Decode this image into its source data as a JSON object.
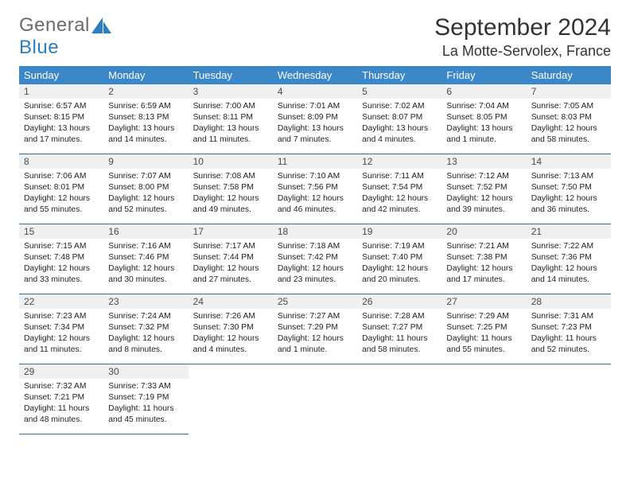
{
  "brand": {
    "part1": "General",
    "part2": "Blue"
  },
  "title": "September 2024",
  "location": "La Motte-Servolex, France",
  "colors": {
    "header_bg": "#3b87c8",
    "header_text": "#ffffff",
    "date_bar_bg": "#eef0f2",
    "row_border": "#3b6fa0",
    "body_text": "#222222",
    "logo_gray": "#6b6b6b",
    "logo_blue": "#2a7fbf"
  },
  "typography": {
    "title_size_pt": 22,
    "location_size_pt": 14,
    "dow_size_pt": 10,
    "body_size_pt": 8
  },
  "daysOfWeek": [
    "Sunday",
    "Monday",
    "Tuesday",
    "Wednesday",
    "Thursday",
    "Friday",
    "Saturday"
  ],
  "weeks": [
    [
      {
        "date": "1",
        "sunrise": "Sunrise: 6:57 AM",
        "sunset": "Sunset: 8:15 PM",
        "daylight": "Daylight: 13 hours and 17 minutes."
      },
      {
        "date": "2",
        "sunrise": "Sunrise: 6:59 AM",
        "sunset": "Sunset: 8:13 PM",
        "daylight": "Daylight: 13 hours and 14 minutes."
      },
      {
        "date": "3",
        "sunrise": "Sunrise: 7:00 AM",
        "sunset": "Sunset: 8:11 PM",
        "daylight": "Daylight: 13 hours and 11 minutes."
      },
      {
        "date": "4",
        "sunrise": "Sunrise: 7:01 AM",
        "sunset": "Sunset: 8:09 PM",
        "daylight": "Daylight: 13 hours and 7 minutes."
      },
      {
        "date": "5",
        "sunrise": "Sunrise: 7:02 AM",
        "sunset": "Sunset: 8:07 PM",
        "daylight": "Daylight: 13 hours and 4 minutes."
      },
      {
        "date": "6",
        "sunrise": "Sunrise: 7:04 AM",
        "sunset": "Sunset: 8:05 PM",
        "daylight": "Daylight: 13 hours and 1 minute."
      },
      {
        "date": "7",
        "sunrise": "Sunrise: 7:05 AM",
        "sunset": "Sunset: 8:03 PM",
        "daylight": "Daylight: 12 hours and 58 minutes."
      }
    ],
    [
      {
        "date": "8",
        "sunrise": "Sunrise: 7:06 AM",
        "sunset": "Sunset: 8:01 PM",
        "daylight": "Daylight: 12 hours and 55 minutes."
      },
      {
        "date": "9",
        "sunrise": "Sunrise: 7:07 AM",
        "sunset": "Sunset: 8:00 PM",
        "daylight": "Daylight: 12 hours and 52 minutes."
      },
      {
        "date": "10",
        "sunrise": "Sunrise: 7:08 AM",
        "sunset": "Sunset: 7:58 PM",
        "daylight": "Daylight: 12 hours and 49 minutes."
      },
      {
        "date": "11",
        "sunrise": "Sunrise: 7:10 AM",
        "sunset": "Sunset: 7:56 PM",
        "daylight": "Daylight: 12 hours and 46 minutes."
      },
      {
        "date": "12",
        "sunrise": "Sunrise: 7:11 AM",
        "sunset": "Sunset: 7:54 PM",
        "daylight": "Daylight: 12 hours and 42 minutes."
      },
      {
        "date": "13",
        "sunrise": "Sunrise: 7:12 AM",
        "sunset": "Sunset: 7:52 PM",
        "daylight": "Daylight: 12 hours and 39 minutes."
      },
      {
        "date": "14",
        "sunrise": "Sunrise: 7:13 AM",
        "sunset": "Sunset: 7:50 PM",
        "daylight": "Daylight: 12 hours and 36 minutes."
      }
    ],
    [
      {
        "date": "15",
        "sunrise": "Sunrise: 7:15 AM",
        "sunset": "Sunset: 7:48 PM",
        "daylight": "Daylight: 12 hours and 33 minutes."
      },
      {
        "date": "16",
        "sunrise": "Sunrise: 7:16 AM",
        "sunset": "Sunset: 7:46 PM",
        "daylight": "Daylight: 12 hours and 30 minutes."
      },
      {
        "date": "17",
        "sunrise": "Sunrise: 7:17 AM",
        "sunset": "Sunset: 7:44 PM",
        "daylight": "Daylight: 12 hours and 27 minutes."
      },
      {
        "date": "18",
        "sunrise": "Sunrise: 7:18 AM",
        "sunset": "Sunset: 7:42 PM",
        "daylight": "Daylight: 12 hours and 23 minutes."
      },
      {
        "date": "19",
        "sunrise": "Sunrise: 7:19 AM",
        "sunset": "Sunset: 7:40 PM",
        "daylight": "Daylight: 12 hours and 20 minutes."
      },
      {
        "date": "20",
        "sunrise": "Sunrise: 7:21 AM",
        "sunset": "Sunset: 7:38 PM",
        "daylight": "Daylight: 12 hours and 17 minutes."
      },
      {
        "date": "21",
        "sunrise": "Sunrise: 7:22 AM",
        "sunset": "Sunset: 7:36 PM",
        "daylight": "Daylight: 12 hours and 14 minutes."
      }
    ],
    [
      {
        "date": "22",
        "sunrise": "Sunrise: 7:23 AM",
        "sunset": "Sunset: 7:34 PM",
        "daylight": "Daylight: 12 hours and 11 minutes."
      },
      {
        "date": "23",
        "sunrise": "Sunrise: 7:24 AM",
        "sunset": "Sunset: 7:32 PM",
        "daylight": "Daylight: 12 hours and 8 minutes."
      },
      {
        "date": "24",
        "sunrise": "Sunrise: 7:26 AM",
        "sunset": "Sunset: 7:30 PM",
        "daylight": "Daylight: 12 hours and 4 minutes."
      },
      {
        "date": "25",
        "sunrise": "Sunrise: 7:27 AM",
        "sunset": "Sunset: 7:29 PM",
        "daylight": "Daylight: 12 hours and 1 minute."
      },
      {
        "date": "26",
        "sunrise": "Sunrise: 7:28 AM",
        "sunset": "Sunset: 7:27 PM",
        "daylight": "Daylight: 11 hours and 58 minutes."
      },
      {
        "date": "27",
        "sunrise": "Sunrise: 7:29 AM",
        "sunset": "Sunset: 7:25 PM",
        "daylight": "Daylight: 11 hours and 55 minutes."
      },
      {
        "date": "28",
        "sunrise": "Sunrise: 7:31 AM",
        "sunset": "Sunset: 7:23 PM",
        "daylight": "Daylight: 11 hours and 52 minutes."
      }
    ],
    [
      {
        "date": "29",
        "sunrise": "Sunrise: 7:32 AM",
        "sunset": "Sunset: 7:21 PM",
        "daylight": "Daylight: 11 hours and 48 minutes."
      },
      {
        "date": "30",
        "sunrise": "Sunrise: 7:33 AM",
        "sunset": "Sunset: 7:19 PM",
        "daylight": "Daylight: 11 hours and 45 minutes."
      },
      null,
      null,
      null,
      null,
      null
    ]
  ]
}
